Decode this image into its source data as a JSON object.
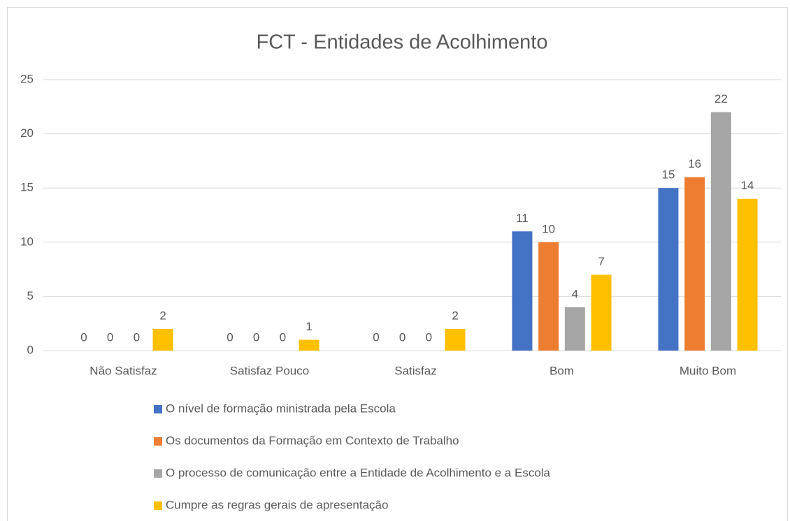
{
  "chart_data": {
    "type": "bar",
    "title": "FCT - Entidades de Acolhimento",
    "categories": [
      "Não Satisfaz",
      "Satisfaz Pouco",
      "Satisfaz",
      "Bom",
      "Muito Bom"
    ],
    "series": [
      {
        "name": "O nível de formação ministrada pela Escola",
        "color": "#4472c4",
        "values": [
          0,
          0,
          0,
          11,
          15
        ]
      },
      {
        "name": "Os documentos da Formação em Contexto de Trabalho",
        "color": "#ed7d31",
        "values": [
          0,
          0,
          0,
          10,
          16
        ]
      },
      {
        "name": "O processo de comunicação entre a Entidade de Acolhimento e a Escola",
        "color": "#a5a5a5",
        "values": [
          0,
          0,
          0,
          4,
          22
        ]
      },
      {
        "name": "Cumpre as regras gerais de apresentação",
        "color": "#ffc000",
        "values": [
          2,
          1,
          2,
          7,
          14
        ]
      }
    ],
    "ylim": [
      0,
      25
    ],
    "yticks": [
      0,
      5,
      10,
      15,
      20,
      25
    ],
    "grid": true,
    "legend": "bottom"
  }
}
